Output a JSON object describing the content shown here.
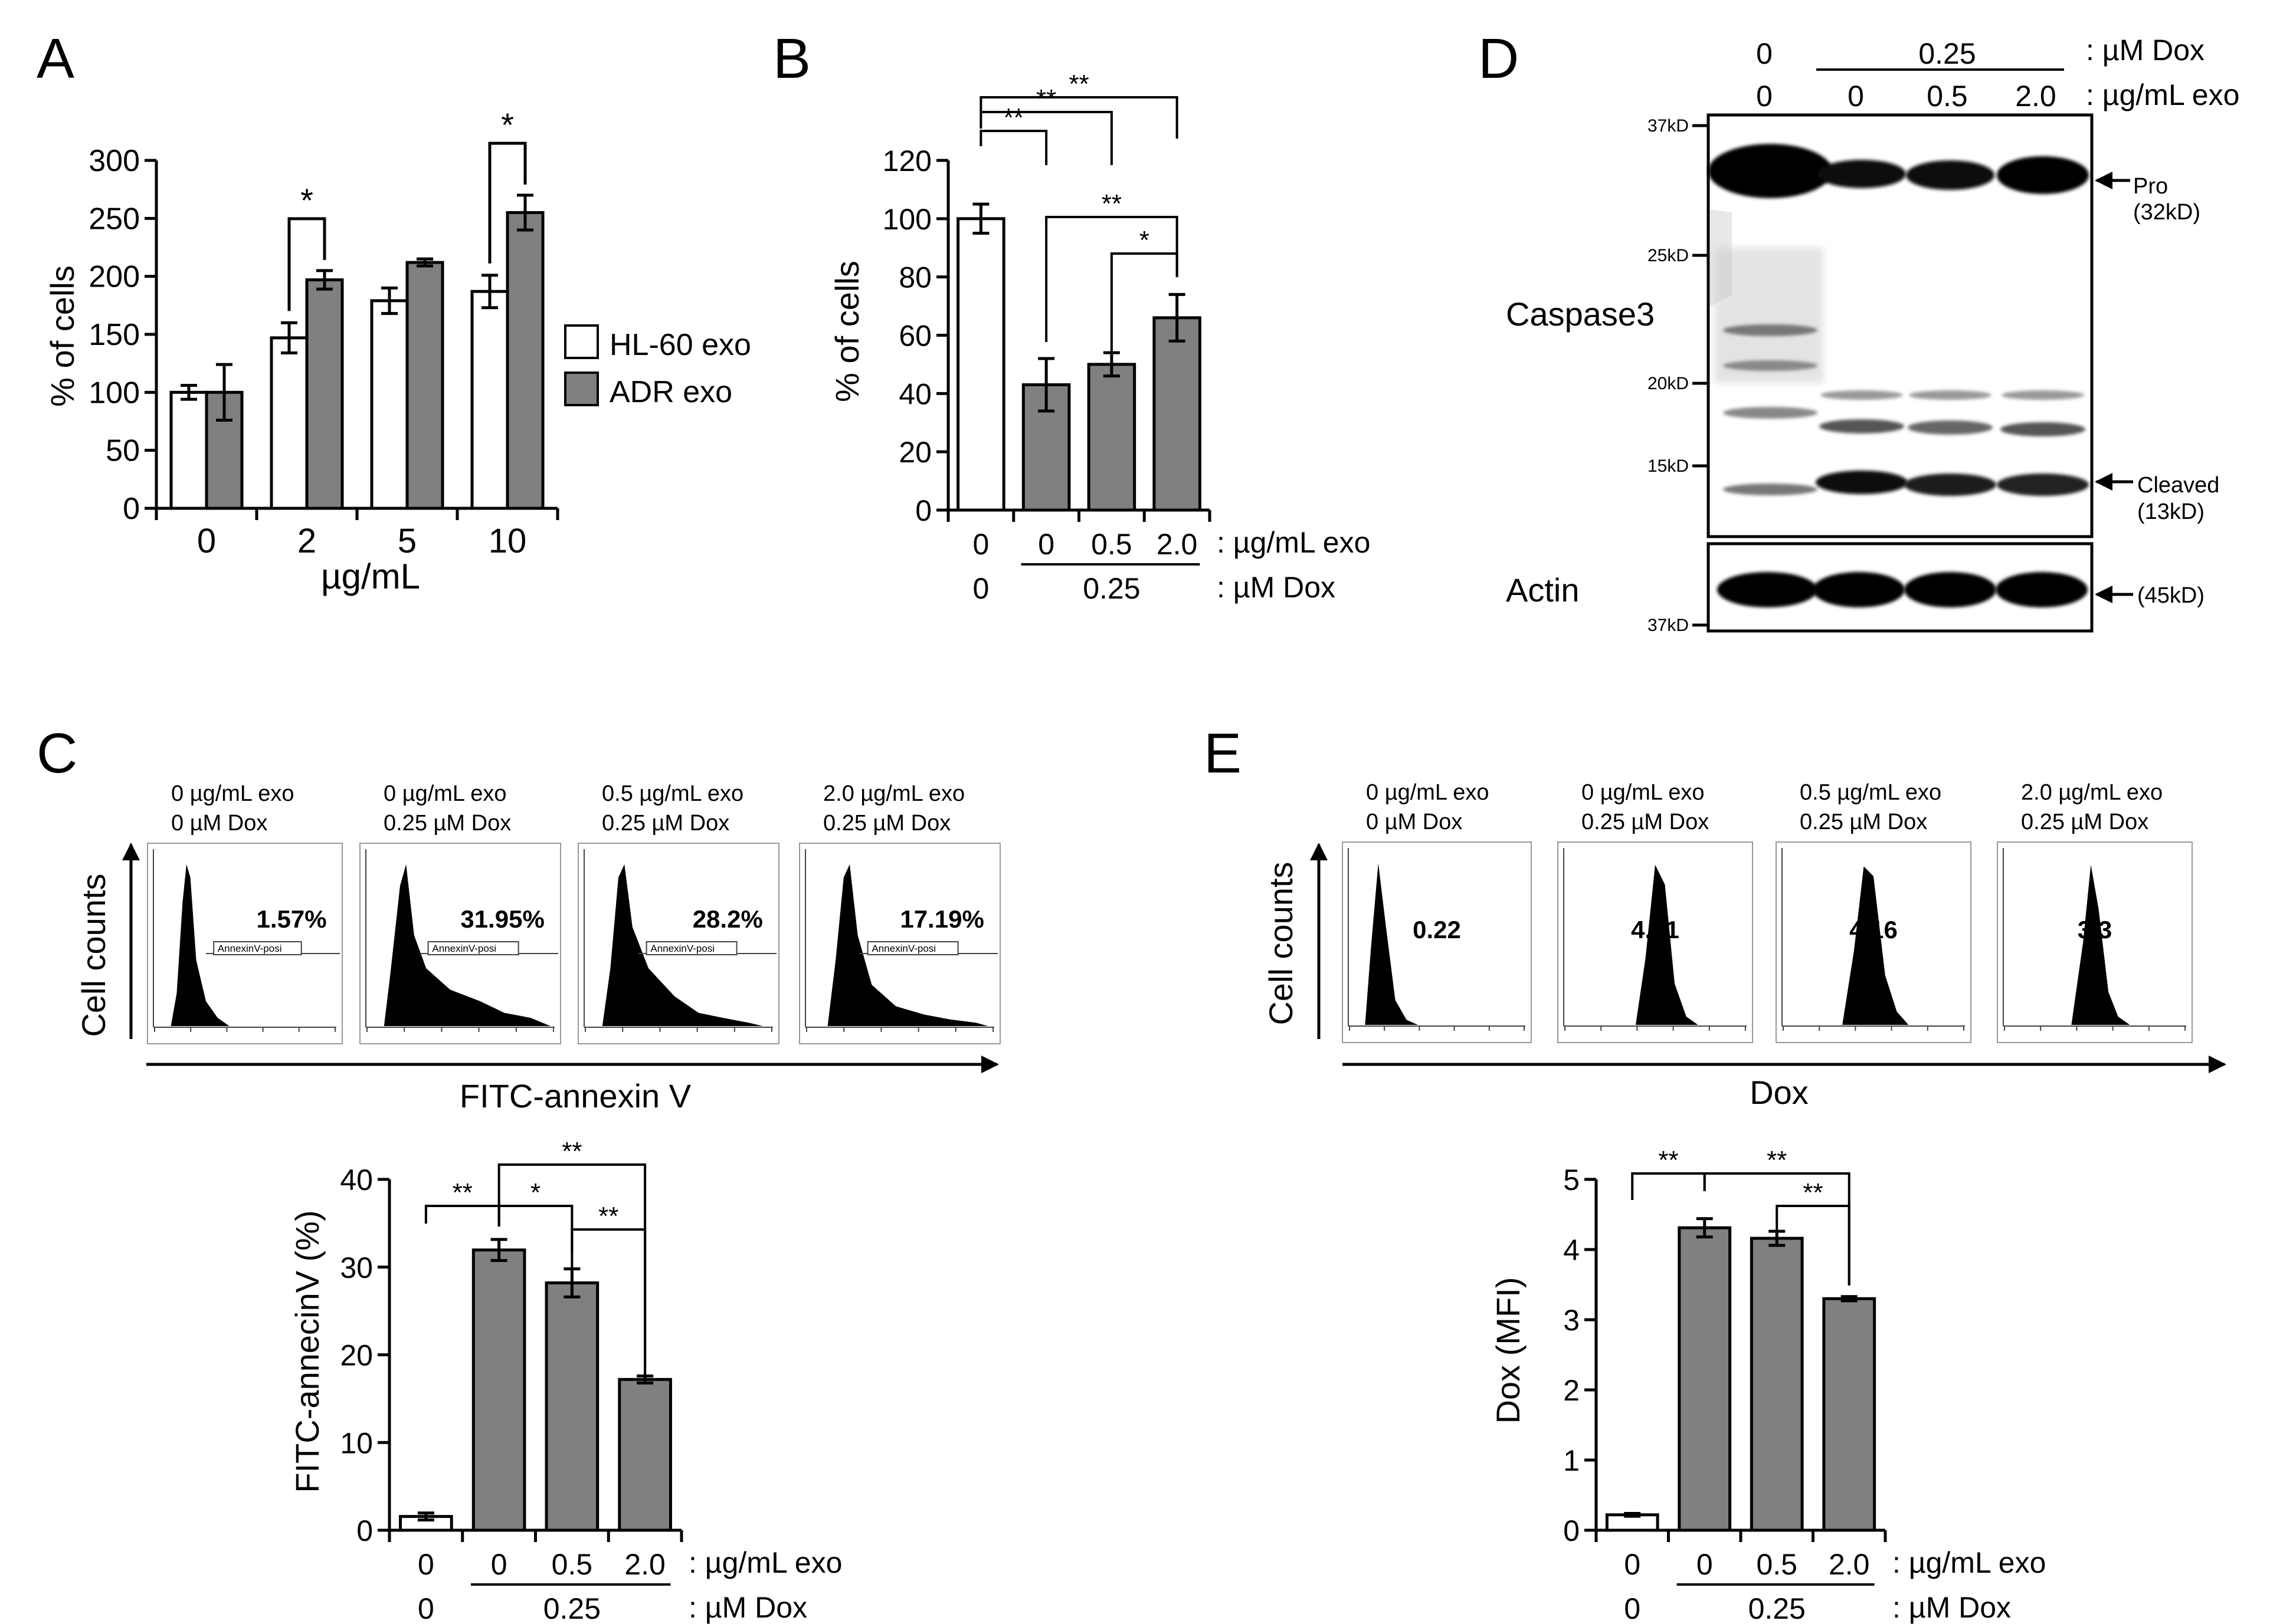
{
  "panels": {
    "a": "A",
    "b": "B",
    "c": "C",
    "d": "D",
    "e": "E"
  },
  "chart_data": [
    {
      "id": "A",
      "type": "bar",
      "ylabel": "% of cells",
      "xlabel": "µg/mL",
      "ylim": [
        0,
        300
      ],
      "yticks": [
        "0",
        "50",
        "100",
        "150",
        "200",
        "250",
        "300"
      ],
      "categories": [
        "0",
        "2",
        "5",
        "10"
      ],
      "legend_position": "right",
      "series": [
        {
          "name": "HL-60 exo",
          "color": "#ffffff",
          "values": [
            100,
            147,
            179,
            187
          ],
          "errors": [
            6,
            13,
            11,
            14
          ]
        },
        {
          "name": "ADR exo",
          "color": "#808080",
          "values": [
            100,
            197,
            212,
            255
          ],
          "errors": [
            24,
            8,
            3,
            15
          ]
        }
      ],
      "significance": [
        {
          "category": 1,
          "label": "*"
        },
        {
          "category": 3,
          "label": "*"
        }
      ]
    },
    {
      "id": "B",
      "type": "bar",
      "ylabel": "% of cells",
      "ylim": [
        0,
        120
      ],
      "yticks": [
        "0",
        "20",
        "40",
        "60",
        "80",
        "100",
        "120"
      ],
      "categories": [
        "0",
        "0",
        "0.5",
        "2.0"
      ],
      "row1_label": ": µg/mL exo",
      "row2_first": "0",
      "row2_group": "0.25",
      "row2_label": ": µM Dox",
      "values": [
        100,
        43,
        50,
        66
      ],
      "errors": [
        5,
        9,
        4,
        8
      ],
      "bar_colors": [
        "#ffffff",
        "#808080",
        "#808080",
        "#808080"
      ],
      "significance": [
        {
          "from": 0,
          "to": 1,
          "label": "**"
        },
        {
          "from": 0,
          "to": 2,
          "label": "**"
        },
        {
          "from": 0,
          "to": 3,
          "label": "**"
        },
        {
          "from": 1,
          "to": 3,
          "label": "**"
        },
        {
          "from": 2,
          "to": 3,
          "label": "*"
        }
      ]
    },
    {
      "id": "C",
      "type": "bar",
      "ylabel": "FITC-annecinV (%)",
      "ylim": [
        0,
        40
      ],
      "yticks": [
        "0",
        "10",
        "20",
        "30",
        "40"
      ],
      "categories": [
        "0",
        "0",
        "0.5",
        "2.0"
      ],
      "row1_label": ": µg/mL exo",
      "row2_first": "0",
      "row2_group": "0.25",
      "row2_label": ": µM Dox",
      "values": [
        1.57,
        31.95,
        28.2,
        17.19
      ],
      "errors": [
        0.4,
        1.2,
        1.6,
        0.4
      ],
      "bar_colors": [
        "#ffffff",
        "#808080",
        "#808080",
        "#808080"
      ],
      "significance": [
        {
          "from": 0,
          "to": 1,
          "label": "**"
        },
        {
          "from": 1,
          "to": 2,
          "label": "*"
        },
        {
          "from": 1,
          "to": 3,
          "label": "**"
        },
        {
          "from": 2,
          "to": 3,
          "label": "**"
        }
      ]
    },
    {
      "id": "E",
      "type": "bar",
      "ylabel": "Dox (MFI)",
      "ylim": [
        0,
        5
      ],
      "yticks": [
        "0",
        "1",
        "2",
        "3",
        "4",
        "5"
      ],
      "categories": [
        "0",
        "0",
        "0.5",
        "2.0"
      ],
      "row1_label": ": µg/mL exo",
      "row2_first": "0",
      "row2_group": "0.25",
      "row2_label": ": µM Dox",
      "values": [
        0.22,
        4.31,
        4.16,
        3.3
      ],
      "errors": [
        0.02,
        0.13,
        0.1,
        0.03
      ],
      "bar_colors": [
        "#ffffff",
        "#808080",
        "#808080",
        "#808080"
      ],
      "significance": [
        {
          "from": 0,
          "to": 1,
          "label": "**"
        },
        {
          "from": 1,
          "to": 3,
          "label": "**"
        },
        {
          "from": 2,
          "to": 3,
          "label": "**"
        }
      ]
    }
  ],
  "flow_c": {
    "ylabel": "Cell counts",
    "xlabel": "FITC-annexin V",
    "gate_label": "AnnexinV-posi",
    "histograms": [
      {
        "exo": "0 µg/mL exo",
        "dox": "0 µM Dox",
        "value": "1.57%"
      },
      {
        "exo": "0 µg/mL exo",
        "dox": "0.25 µM Dox",
        "value": "31.95%"
      },
      {
        "exo": "0.5 µg/mL exo",
        "dox": "0.25 µM Dox",
        "value": "28.2%"
      },
      {
        "exo": "2.0 µg/mL exo",
        "dox": "0.25 µM Dox",
        "value": "17.19%"
      }
    ]
  },
  "flow_e": {
    "ylabel": "Cell counts",
    "xlabel": "Dox",
    "histograms": [
      {
        "exo": "0 µg/mL exo",
        "dox": "0 µM Dox",
        "value": "0.22"
      },
      {
        "exo": "0 µg/mL exo",
        "dox": "0.25 µM Dox",
        "value": "4.31"
      },
      {
        "exo": "0.5 µg/mL exo",
        "dox": "0.25 µM Dox",
        "value": "4.16"
      },
      {
        "exo": "2.0 µg/mL exo",
        "dox": "0.25 µM Dox",
        "value": "3.3"
      }
    ]
  },
  "blot_d": {
    "dox_first": "0",
    "dox_group": "0.25",
    "dox_label": ": µM Dox",
    "exo_values": [
      "0",
      "0",
      "0.5",
      "2.0"
    ],
    "exo_label": ": µg/mL exo",
    "markers": [
      "37kD",
      "25kD",
      "20kD",
      "15kD",
      "37kD"
    ],
    "caspase_label": "Caspase3",
    "actin_label": "Actin",
    "pro_label": "Pro",
    "pro_size": "(32kD)",
    "cleaved_label": "Cleaved",
    "cleaved_size": "(13kD)",
    "actin_size": "(45kD)"
  }
}
